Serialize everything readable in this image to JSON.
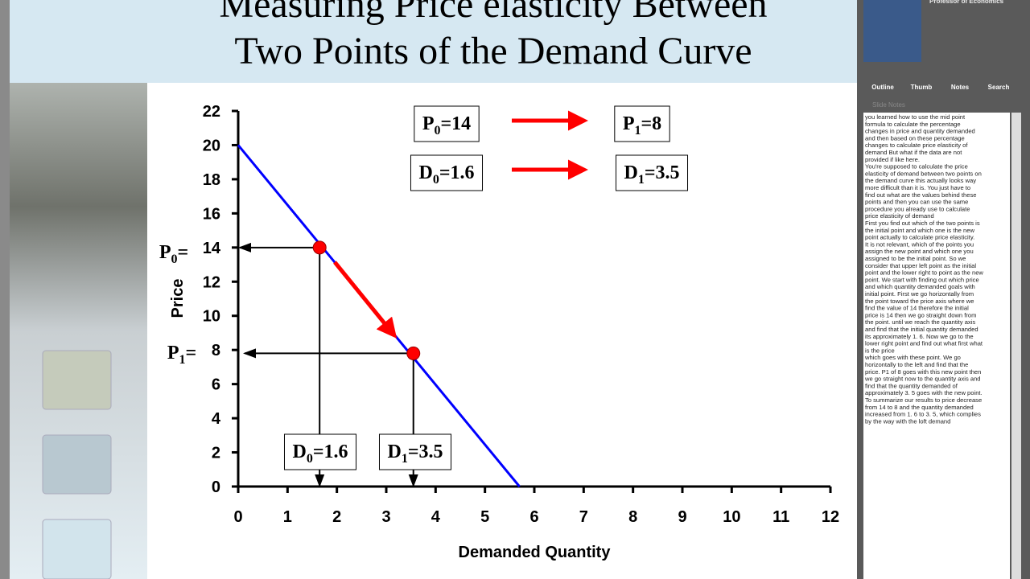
{
  "slide": {
    "title_lines": [
      "Measuring Price elasticity Between",
      "Two Points of the Demand Curve"
    ]
  },
  "presenter": {
    "role": "Professor of Economics"
  },
  "tabs": [
    "Outline",
    "Thumb",
    "Notes",
    "Search"
  ],
  "notes": {
    "label": "Slide Notes",
    "lines": [
      "you learned how to use the mid point",
      "formula to calculate the percentage",
      "changes in price and quantity demanded",
      "and then based on these percentage",
      "changes to calculate price elasticity of",
      "demand But what if the data are not",
      "provided if like here.",
      "You're supposed to calculate the price",
      "elasticity of demand  between two points on",
      "the demand curve this actually looks way",
      "more difficult than it is. You just have to",
      "find out what are the values behind these",
      "points and then you can use the same",
      "procedure you already use to calculate",
      "price elasticity of demand",
      "First you find out which of the two points is",
      "the initial point and which one is the new",
      "point actually to calculate price elasticity.",
      "It is not relevant, which of the points you",
      "assign the new point and which one you",
      "assigned to be the initial point. So we",
      "consider that upper left point as the initial",
      "point and the lower right to point as the new",
      "point. We start with finding out which price",
      "and which quantity demanded goals with",
      "initial point. First we go horizontally from",
      "the point toward the price axis where we",
      "find the value of 14 therefore the initial",
      "price is 14 then we go straight down from",
      "the point. until we reach the quantity axis",
      "and find that the initial quantity demanded",
      "its approximately 1. 6. Now we go to the",
      "lower right point and find out what first what",
      "is the price",
      "which goes with these point. We go",
      "horizontally to the left and find that the",
      "price. P1 of 8 goes with this new point then",
      "we go straight now to the quantity axis and",
      "find that the quantity demanded of",
      "approximately 3. 5 goes with the new point.",
      "To summarize our results to price decrease",
      "from 14 to 8 and the quantity demanded",
      "increased from 1. 6 to 3. 5, which complies",
      "by the way with the loft demand"
    ]
  },
  "chart_data": {
    "type": "line",
    "xlabel": "Demanded Quantity",
    "ylabel": "Price",
    "xlim": [
      0,
      12
    ],
    "ylim": [
      0,
      22
    ],
    "xticks": [
      0,
      1,
      2,
      3,
      4,
      5,
      6,
      7,
      8,
      9,
      10,
      11,
      12
    ],
    "yticks": [
      0,
      2,
      4,
      6,
      8,
      10,
      12,
      14,
      16,
      18,
      20,
      22
    ],
    "series": [
      {
        "color": "#0000ff",
        "x": [
          0,
          5.7
        ],
        "values": [
          20,
          0
        ]
      }
    ],
    "points": {
      "color": "#ff0000",
      "x": [
        1.65,
        3.55
      ],
      "values": [
        14,
        7.8
      ]
    },
    "annotations": [
      {
        "main": "P",
        "sub": "0",
        "rest": "=14"
      },
      {
        "main": "P",
        "sub": "1",
        "rest": "=8"
      },
      {
        "main": "D",
        "sub": "0",
        "rest": "=1.6"
      },
      {
        "main": "D",
        "sub": "1",
        "rest": "=3.5"
      },
      {
        "main": "D",
        "sub": "0",
        "rest": "=1.6"
      },
      {
        "main": "D",
        "sub": "1",
        "rest": "=3.5"
      },
      {
        "main": "P",
        "sub": "0",
        "rest": "="
      },
      {
        "main": "P",
        "sub": "1",
        "rest": "="
      }
    ]
  }
}
